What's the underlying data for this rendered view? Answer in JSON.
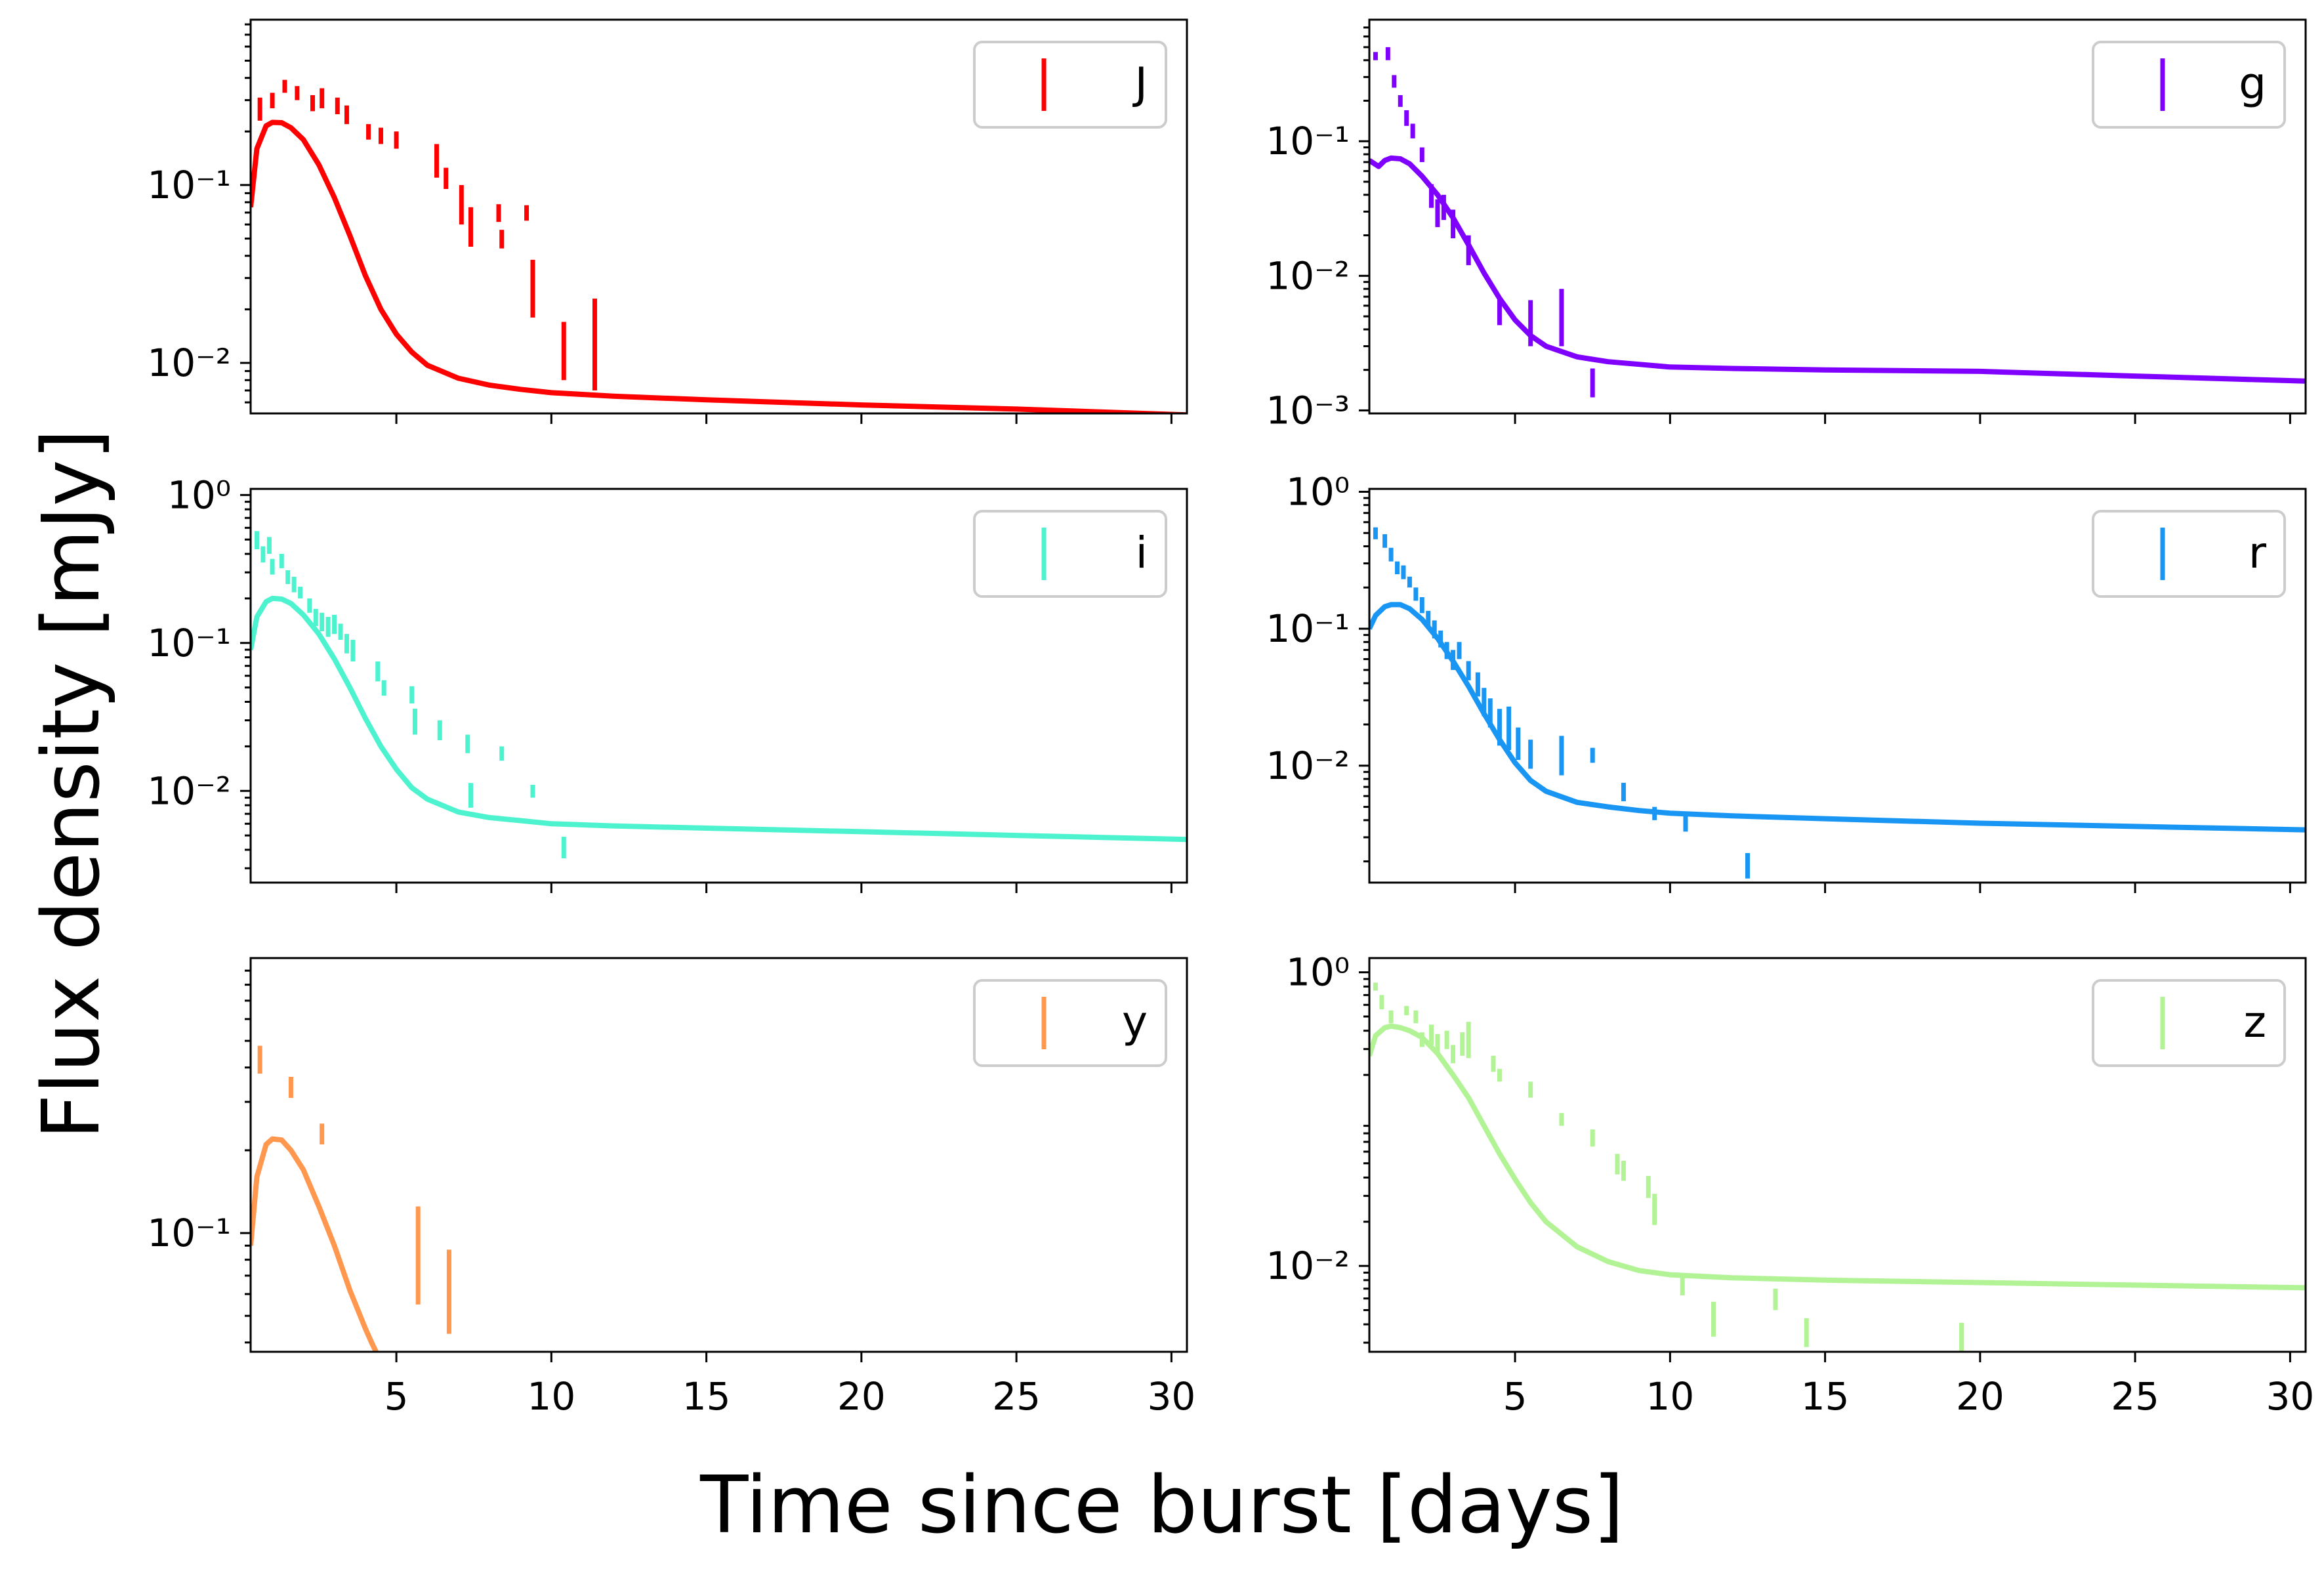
{
  "figure": {
    "xlabel": "Time since burst [days]",
    "ylabel": "Flux density [mJy]"
  },
  "chart_data": [
    {
      "type": "line",
      "band": "J",
      "color": "#ff0000",
      "legend": "J",
      "yscale": "log",
      "xlim": [
        0.3,
        30.5
      ],
      "ylim": [
        0.0052,
        0.85
      ],
      "xticks": [
        5,
        10,
        15,
        20,
        25,
        30
      ],
      "xtick_labels_visible": false,
      "yticks": [
        0.01,
        0.1
      ],
      "ytick_labels": [
        "10⁻²",
        "10⁻¹"
      ],
      "model": {
        "x": [
          0.3,
          0.5,
          0.8,
          1.0,
          1.3,
          1.6,
          2.0,
          2.5,
          3.0,
          3.5,
          4.0,
          4.5,
          5.0,
          5.5,
          6.0,
          7.0,
          8.0,
          9.0,
          10.0,
          12.0,
          15.0,
          20.0,
          25.0,
          30.5
        ],
        "y": [
          0.075,
          0.16,
          0.215,
          0.225,
          0.224,
          0.21,
          0.18,
          0.13,
          0.085,
          0.052,
          0.031,
          0.02,
          0.0145,
          0.0115,
          0.0097,
          0.0082,
          0.0075,
          0.0071,
          0.0068,
          0.0065,
          0.0062,
          0.0058,
          0.0055,
          0.0051
        ]
      },
      "points": [
        {
          "x": 0.6,
          "y": 0.27,
          "err": 0.04
        },
        {
          "x": 1.0,
          "y": 0.3,
          "err": 0.03
        },
        {
          "x": 1.4,
          "y": 0.36,
          "err": 0.03
        },
        {
          "x": 1.8,
          "y": 0.33,
          "err": 0.03
        },
        {
          "x": 2.3,
          "y": 0.29,
          "err": 0.03
        },
        {
          "x": 2.6,
          "y": 0.31,
          "err": 0.04
        },
        {
          "x": 3.1,
          "y": 0.28,
          "err": 0.03
        },
        {
          "x": 3.4,
          "y": 0.25,
          "err": 0.03
        },
        {
          "x": 4.1,
          "y": 0.2,
          "err": 0.02
        },
        {
          "x": 4.5,
          "y": 0.19,
          "err": 0.02
        },
        {
          "x": 5.0,
          "y": 0.18,
          "err": 0.02
        },
        {
          "x": 6.3,
          "y": 0.14,
          "err": 0.03
        },
        {
          "x": 6.6,
          "y": 0.11,
          "err": 0.015
        },
        {
          "x": 7.1,
          "y": 0.08,
          "err": 0.02
        },
        {
          "x": 7.4,
          "y": 0.06,
          "err": 0.015
        },
        {
          "x": 8.3,
          "y": 0.07,
          "err": 0.008
        },
        {
          "x": 8.4,
          "y": 0.05,
          "err": 0.006
        },
        {
          "x": 9.2,
          "y": 0.07,
          "err": 0.007
        },
        {
          "x": 9.4,
          "y": 0.028,
          "err": 0.01
        },
        {
          "x": 10.4,
          "y": 0.0125,
          "err": 0.0045
        },
        {
          "x": 11.4,
          "y": 0.015,
          "err": 0.008
        }
      ]
    },
    {
      "type": "line",
      "band": "g",
      "color": "#7f00ff",
      "legend": "g",
      "yscale": "log",
      "xlim": [
        0.3,
        30.5
      ],
      "ylim": [
        0.00095,
        0.8
      ],
      "xticks": [
        5,
        10,
        15,
        20,
        25,
        30
      ],
      "xtick_labels_visible": false,
      "yticks": [
        0.001,
        0.01,
        0.1
      ],
      "ytick_labels": [
        "10⁻³",
        "10⁻²",
        "10⁻¹"
      ],
      "model": {
        "x": [
          0.3,
          0.6,
          0.8,
          1.0,
          1.3,
          1.6,
          2.0,
          2.5,
          3.0,
          3.5,
          4.0,
          4.5,
          5.0,
          5.5,
          6.0,
          7.0,
          8.0,
          9.0,
          10.0,
          12.0,
          15.0,
          20.0,
          25.0,
          30.5
        ],
        "y": [
          0.072,
          0.065,
          0.072,
          0.075,
          0.074,
          0.068,
          0.055,
          0.04,
          0.027,
          0.017,
          0.0105,
          0.0068,
          0.0047,
          0.0036,
          0.003,
          0.0025,
          0.0023,
          0.0022,
          0.0021,
          0.00205,
          0.002,
          0.00195,
          0.0018,
          0.00165
        ]
      },
      "points": [
        {
          "x": 0.5,
          "y": 0.43,
          "err": 0.03
        },
        {
          "x": 0.9,
          "y": 0.45,
          "err": 0.05
        },
        {
          "x": 1.1,
          "y": 0.28,
          "err": 0.03
        },
        {
          "x": 1.3,
          "y": 0.2,
          "err": 0.02
        },
        {
          "x": 1.5,
          "y": 0.15,
          "err": 0.02
        },
        {
          "x": 1.7,
          "y": 0.12,
          "err": 0.015
        },
        {
          "x": 2.0,
          "y": 0.08,
          "err": 0.01
        },
        {
          "x": 2.3,
          "y": 0.04,
          "err": 0.008
        },
        {
          "x": 2.5,
          "y": 0.03,
          "err": 0.007
        },
        {
          "x": 2.7,
          "y": 0.033,
          "err": 0.007
        },
        {
          "x": 3.0,
          "y": 0.025,
          "err": 0.006
        },
        {
          "x": 3.5,
          "y": 0.016,
          "err": 0.004
        },
        {
          "x": 4.5,
          "y": 0.0055,
          "err": 0.0012
        },
        {
          "x": 5.5,
          "y": 0.0048,
          "err": 0.0018
        },
        {
          "x": 6.5,
          "y": 0.0055,
          "err": 0.0025
        },
        {
          "x": 7.5,
          "y": 0.00165,
          "err": 0.0004
        }
      ]
    },
    {
      "type": "line",
      "band": "i",
      "color": "#4df3ce",
      "legend": "i",
      "yscale": "log",
      "xlim": [
        0.3,
        30.5
      ],
      "ylim": [
        0.0024,
        1.1
      ],
      "xticks": [
        5,
        10,
        15,
        20,
        25,
        30
      ],
      "xtick_labels_visible": false,
      "yticks": [
        0.01,
        0.1,
        1
      ],
      "ytick_labels": [
        "10⁻²",
        "10⁻¹",
        "10⁰"
      ],
      "model": {
        "x": [
          0.3,
          0.5,
          0.8,
          1.0,
          1.3,
          1.6,
          2.0,
          2.5,
          3.0,
          3.5,
          4.0,
          4.5,
          5.0,
          5.5,
          6.0,
          7.0,
          8.0,
          9.0,
          10.0,
          12.0,
          15.0,
          20.0,
          25.0,
          30.5
        ],
        "y": [
          0.09,
          0.15,
          0.19,
          0.2,
          0.198,
          0.185,
          0.155,
          0.115,
          0.078,
          0.05,
          0.031,
          0.02,
          0.014,
          0.0105,
          0.0088,
          0.0072,
          0.0066,
          0.0063,
          0.006,
          0.0058,
          0.0056,
          0.0053,
          0.005,
          0.0047
        ]
      },
      "points": [
        {
          "x": 0.5,
          "y": 0.5,
          "err": 0.07
        },
        {
          "x": 0.7,
          "y": 0.4,
          "err": 0.05
        },
        {
          "x": 0.9,
          "y": 0.46,
          "err": 0.06
        },
        {
          "x": 1.0,
          "y": 0.33,
          "err": 0.04
        },
        {
          "x": 1.3,
          "y": 0.36,
          "err": 0.04
        },
        {
          "x": 1.5,
          "y": 0.28,
          "err": 0.03
        },
        {
          "x": 1.7,
          "y": 0.25,
          "err": 0.03
        },
        {
          "x": 1.9,
          "y": 0.22,
          "err": 0.02
        },
        {
          "x": 2.2,
          "y": 0.18,
          "err": 0.02
        },
        {
          "x": 2.4,
          "y": 0.15,
          "err": 0.02
        },
        {
          "x": 2.6,
          "y": 0.14,
          "err": 0.02
        },
        {
          "x": 2.8,
          "y": 0.13,
          "err": 0.02
        },
        {
          "x": 3.0,
          "y": 0.135,
          "err": 0.02
        },
        {
          "x": 3.2,
          "y": 0.12,
          "err": 0.015
        },
        {
          "x": 3.4,
          "y": 0.1,
          "err": 0.015
        },
        {
          "x": 3.6,
          "y": 0.09,
          "err": 0.015
        },
        {
          "x": 4.4,
          "y": 0.065,
          "err": 0.01
        },
        {
          "x": 4.6,
          "y": 0.05,
          "err": 0.006
        },
        {
          "x": 5.5,
          "y": 0.045,
          "err": 0.006
        },
        {
          "x": 5.6,
          "y": 0.03,
          "err": 0.006
        },
        {
          "x": 6.4,
          "y": 0.026,
          "err": 0.004
        },
        {
          "x": 7.3,
          "y": 0.021,
          "err": 0.003
        },
        {
          "x": 7.4,
          "y": 0.0095,
          "err": 0.0018
        },
        {
          "x": 8.4,
          "y": 0.018,
          "err": 0.002
        },
        {
          "x": 9.4,
          "y": 0.01,
          "err": 0.001
        },
        {
          "x": 10.4,
          "y": 0.0042,
          "err": 0.0007
        }
      ]
    },
    {
      "type": "line",
      "band": "r",
      "color": "#1996f3",
      "legend": "r",
      "yscale": "log",
      "xlim": [
        0.3,
        30.5
      ],
      "ylim": [
        0.0014,
        1.05
      ],
      "xticks": [
        5,
        10,
        15,
        20,
        25,
        30
      ],
      "xtick_labels_visible": false,
      "yticks": [
        0.01,
        0.1,
        1
      ],
      "ytick_labels": [
        "10⁻²",
        "10⁻¹",
        "10⁰"
      ],
      "model": {
        "x": [
          0.3,
          0.5,
          0.8,
          1.0,
          1.3,
          1.6,
          2.0,
          2.5,
          3.0,
          3.5,
          4.0,
          4.5,
          5.0,
          5.5,
          6.0,
          7.0,
          8.0,
          9.0,
          10.0,
          12.0,
          15.0,
          20.0,
          25.0,
          30.5
        ],
        "y": [
          0.1,
          0.125,
          0.145,
          0.15,
          0.15,
          0.14,
          0.117,
          0.085,
          0.058,
          0.038,
          0.024,
          0.0155,
          0.0105,
          0.0078,
          0.0065,
          0.0054,
          0.005,
          0.0047,
          0.0045,
          0.0043,
          0.0041,
          0.0038,
          0.0036,
          0.0034
        ]
      },
      "points": [
        {
          "x": 0.5,
          "y": 0.5,
          "err": 0.05
        },
        {
          "x": 0.8,
          "y": 0.44,
          "err": 0.05
        },
        {
          "x": 1.0,
          "y": 0.35,
          "err": 0.04
        },
        {
          "x": 1.2,
          "y": 0.28,
          "err": 0.03
        },
        {
          "x": 1.4,
          "y": 0.26,
          "err": 0.03
        },
        {
          "x": 1.6,
          "y": 0.22,
          "err": 0.02
        },
        {
          "x": 1.8,
          "y": 0.18,
          "err": 0.02
        },
        {
          "x": 2.0,
          "y": 0.15,
          "err": 0.02
        },
        {
          "x": 2.2,
          "y": 0.12,
          "err": 0.015
        },
        {
          "x": 2.4,
          "y": 0.1,
          "err": 0.015
        },
        {
          "x": 2.6,
          "y": 0.085,
          "err": 0.012
        },
        {
          "x": 2.8,
          "y": 0.07,
          "err": 0.01
        },
        {
          "x": 3.0,
          "y": 0.06,
          "err": 0.01
        },
        {
          "x": 3.2,
          "y": 0.07,
          "err": 0.01
        },
        {
          "x": 3.5,
          "y": 0.05,
          "err": 0.008
        },
        {
          "x": 3.8,
          "y": 0.04,
          "err": 0.008
        },
        {
          "x": 4.0,
          "y": 0.03,
          "err": 0.007
        },
        {
          "x": 4.2,
          "y": 0.025,
          "err": 0.006
        },
        {
          "x": 4.5,
          "y": 0.02,
          "err": 0.006
        },
        {
          "x": 4.8,
          "y": 0.02,
          "err": 0.007
        },
        {
          "x": 5.1,
          "y": 0.015,
          "err": 0.004
        },
        {
          "x": 5.5,
          "y": 0.0125,
          "err": 0.003
        },
        {
          "x": 6.5,
          "y": 0.0125,
          "err": 0.004
        },
        {
          "x": 7.5,
          "y": 0.012,
          "err": 0.0015
        },
        {
          "x": 8.5,
          "y": 0.0065,
          "err": 0.001
        },
        {
          "x": 9.5,
          "y": 0.0045,
          "err": 0.0005
        },
        {
          "x": 10.5,
          "y": 0.0038,
          "err": 0.0005
        },
        {
          "x": 12.5,
          "y": 0.0019,
          "err": 0.0004
        }
      ]
    },
    {
      "type": "line",
      "band": "y",
      "color": "#ff974f",
      "legend": "y",
      "yscale": "log",
      "xlim": [
        0.3,
        30.5
      ],
      "ylim": [
        0.037,
        1.0
      ],
      "xticks": [
        5,
        10,
        15,
        20,
        25,
        30
      ],
      "xtick_labels": [
        "5",
        "10",
        "15",
        "20",
        "25",
        "30"
      ],
      "yticks": [
        0.1
      ],
      "ytick_labels": [
        "10⁻¹"
      ],
      "model": {
        "x": [
          0.3,
          0.5,
          0.8,
          1.0,
          1.3,
          1.6,
          2.0,
          2.5,
          3.0,
          3.5,
          4.0,
          4.2,
          4.5
        ],
        "y": [
          0.09,
          0.16,
          0.21,
          0.22,
          0.218,
          0.2,
          0.17,
          0.125,
          0.09,
          0.062,
          0.045,
          0.04,
          0.034
        ]
      },
      "points": [
        {
          "x": 0.6,
          "y": 0.43,
          "err": 0.05
        },
        {
          "x": 1.6,
          "y": 0.34,
          "err": 0.03
        },
        {
          "x": 2.6,
          "y": 0.23,
          "err": 0.02
        },
        {
          "x": 5.7,
          "y": 0.09,
          "err": 0.035
        },
        {
          "x": 6.7,
          "y": 0.065,
          "err": 0.022
        }
      ]
    },
    {
      "type": "line",
      "band": "z",
      "color": "#b2f396",
      "legend": "z",
      "yscale": "log",
      "xlim": [
        0.3,
        30.5
      ],
      "ylim": [
        0.0026,
        1.25
      ],
      "xticks": [
        5,
        10,
        15,
        20,
        25,
        30
      ],
      "xtick_labels": [
        "5",
        "10",
        "15",
        "20",
        "25",
        "30"
      ],
      "yticks": [
        0.01,
        1
      ],
      "ytick_labels": [
        "10⁻²",
        "10⁰"
      ],
      "model": {
        "x": [
          0.3,
          0.5,
          0.8,
          1.0,
          1.3,
          1.6,
          2.0,
          2.5,
          3.0,
          3.5,
          4.0,
          4.5,
          5.0,
          5.5,
          6.0,
          7.0,
          8.0,
          9.0,
          10.0,
          12.0,
          15.0,
          20.0,
          25.0,
          30.5
        ],
        "y": [
          0.27,
          0.37,
          0.42,
          0.43,
          0.42,
          0.4,
          0.36,
          0.28,
          0.2,
          0.14,
          0.09,
          0.058,
          0.039,
          0.027,
          0.02,
          0.0135,
          0.0107,
          0.0093,
          0.0087,
          0.0083,
          0.008,
          0.0077,
          0.0074,
          0.0071
        ]
      },
      "points": [
        {
          "x": 0.5,
          "y": 0.8,
          "err": 0.05
        },
        {
          "x": 0.7,
          "y": 0.63,
          "err": 0.07
        },
        {
          "x": 1.0,
          "y": 0.5,
          "err": 0.05
        },
        {
          "x": 1.5,
          "y": 0.55,
          "err": 0.04
        },
        {
          "x": 1.8,
          "y": 0.5,
          "err": 0.05
        },
        {
          "x": 2.0,
          "y": 0.35,
          "err": 0.04
        },
        {
          "x": 2.3,
          "y": 0.38,
          "err": 0.06
        },
        {
          "x": 2.5,
          "y": 0.33,
          "err": 0.05
        },
        {
          "x": 2.8,
          "y": 0.35,
          "err": 0.05
        },
        {
          "x": 3.0,
          "y": 0.28,
          "err": 0.04
        },
        {
          "x": 3.3,
          "y": 0.33,
          "err": 0.06
        },
        {
          "x": 3.5,
          "y": 0.36,
          "err": 0.1
        },
        {
          "x": 4.3,
          "y": 0.24,
          "err": 0.03
        },
        {
          "x": 4.5,
          "y": 0.2,
          "err": 0.02
        },
        {
          "x": 5.5,
          "y": 0.16,
          "err": 0.02
        },
        {
          "x": 6.5,
          "y": 0.1,
          "err": 0.01
        },
        {
          "x": 7.5,
          "y": 0.075,
          "err": 0.01
        },
        {
          "x": 8.3,
          "y": 0.05,
          "err": 0.008
        },
        {
          "x": 8.5,
          "y": 0.045,
          "err": 0.007
        },
        {
          "x": 9.3,
          "y": 0.035,
          "err": 0.006
        },
        {
          "x": 9.5,
          "y": 0.025,
          "err": 0.006
        },
        {
          "x": 10.4,
          "y": 0.0075,
          "err": 0.0012
        },
        {
          "x": 11.4,
          "y": 0.0045,
          "err": 0.0012
        },
        {
          "x": 13.4,
          "y": 0.006,
          "err": 0.001
        },
        {
          "x": 14.4,
          "y": 0.0036,
          "err": 0.0008
        },
        {
          "x": 19.4,
          "y": 0.0032,
          "err": 0.0009
        }
      ]
    }
  ]
}
